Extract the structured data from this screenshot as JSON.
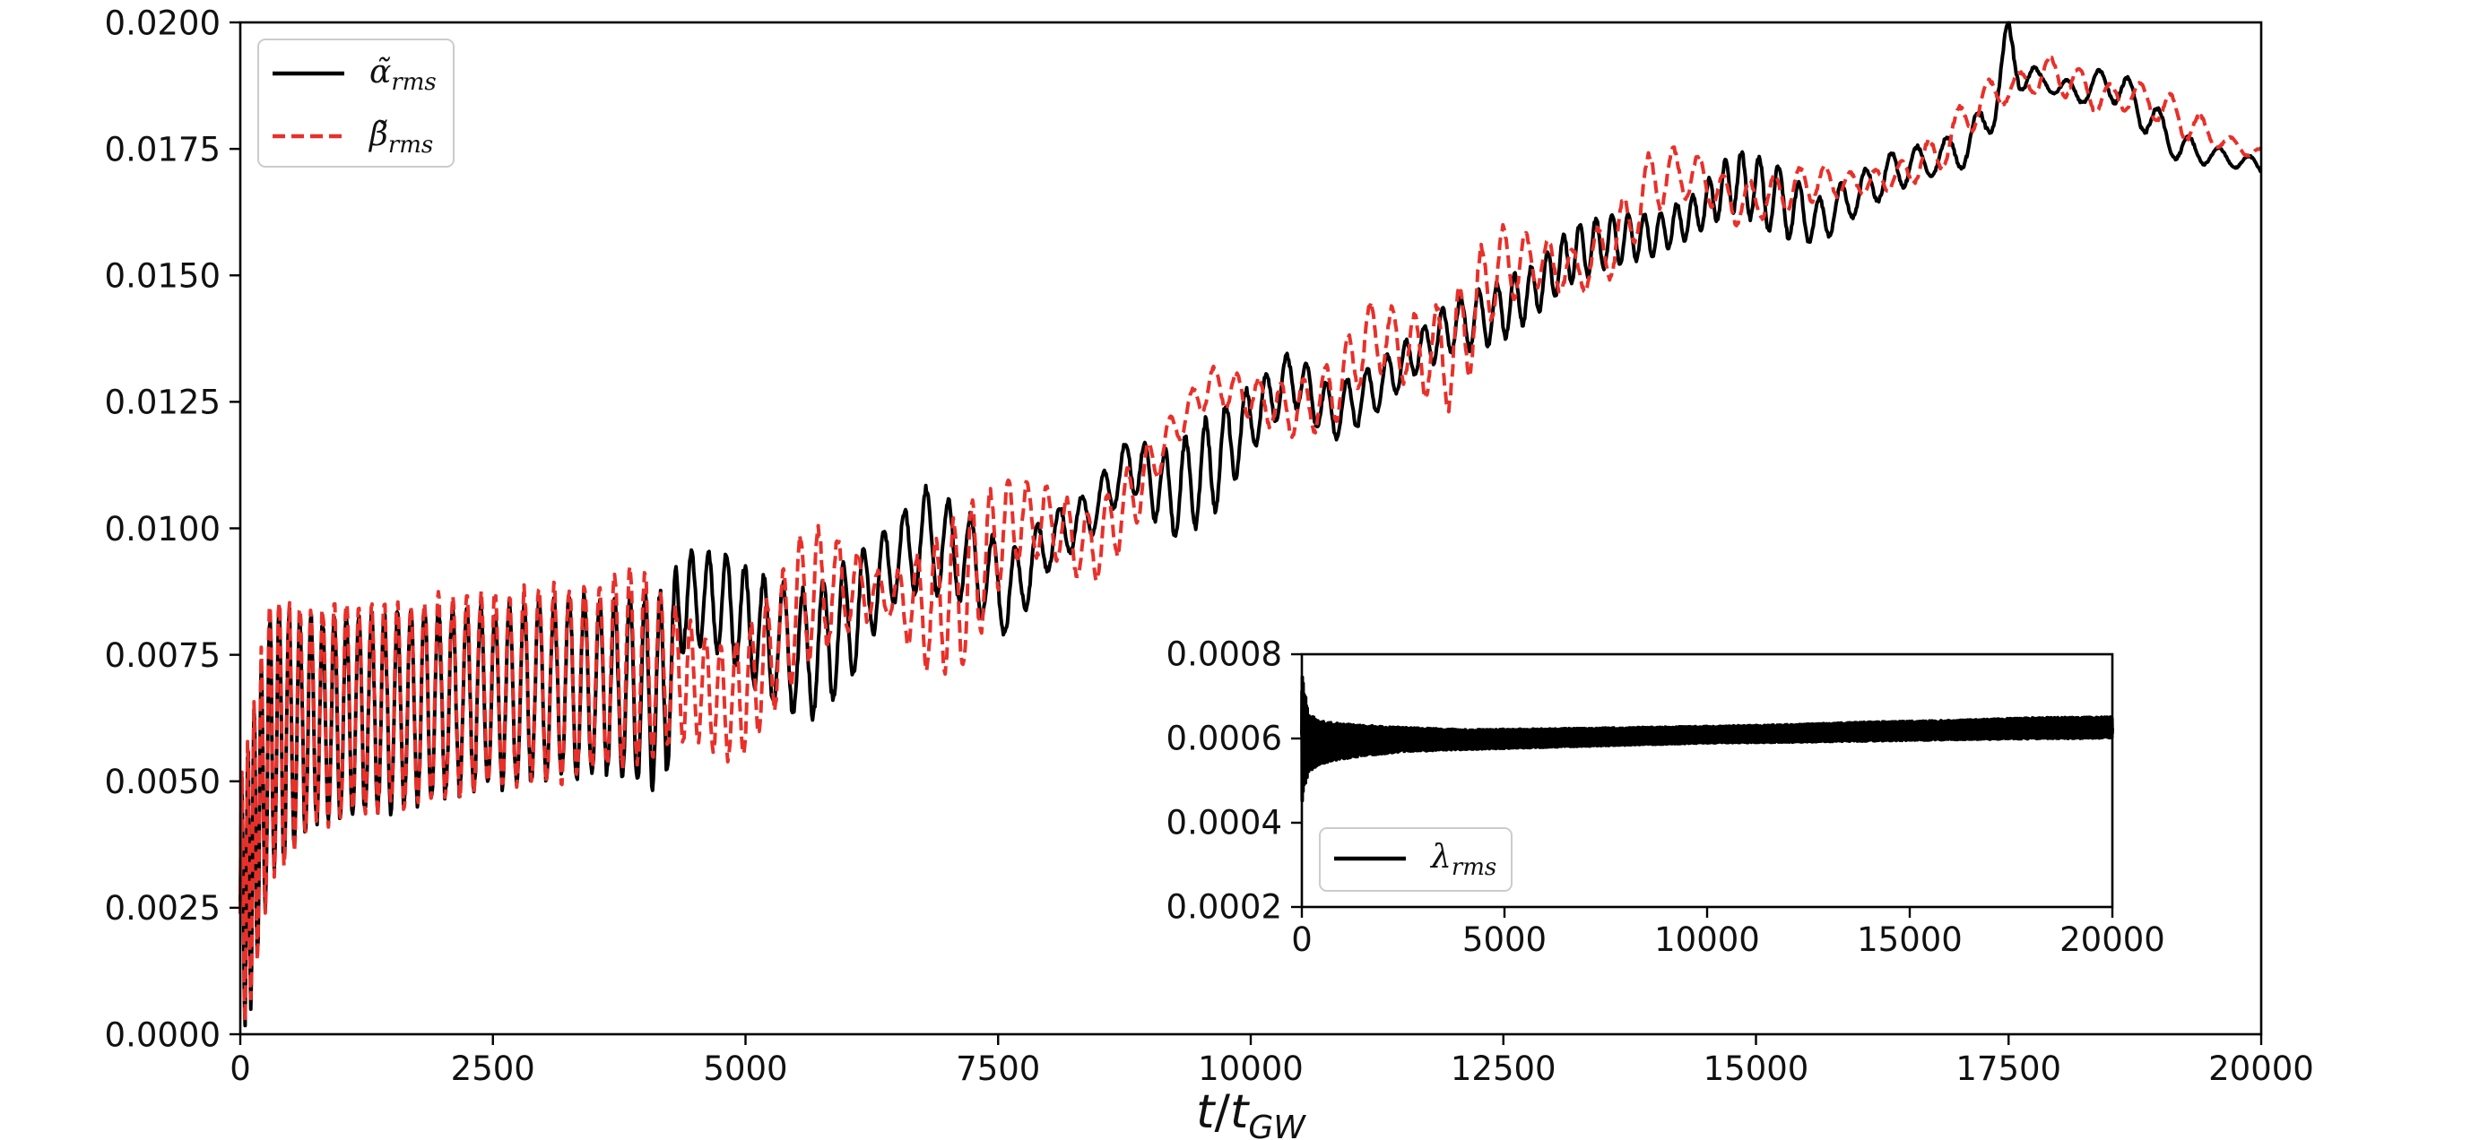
{
  "chart_data": [
    {
      "type": "line",
      "xlabel": "t/t_GW",
      "xlabel_parts": {
        "t1": "t",
        "slash": "/",
        "t2": "t",
        "sub": "GW"
      },
      "xlim": [
        0,
        20000
      ],
      "ylim": [
        0.0,
        0.02
      ],
      "xticks": [
        0,
        2500,
        5000,
        7500,
        10000,
        12500,
        15000,
        17500,
        20000
      ],
      "xtick_labels": [
        "0",
        "2500",
        "5000",
        "7500",
        "10000",
        "12500",
        "15000",
        "17500",
        "20000"
      ],
      "yticks": [
        0.0,
        0.0025,
        0.005,
        0.0075,
        0.01,
        0.0125,
        0.015,
        0.0175,
        0.02
      ],
      "ytick_labels": [
        "0.0000",
        "0.0025",
        "0.0050",
        "0.0075",
        "0.0100",
        "0.0125",
        "0.0150",
        "0.0175",
        "0.0200"
      ],
      "grid": false,
      "legend_position": "top-left",
      "series": [
        {
          "name": "α̃_rms",
          "label_base": "α̃",
          "label_sub": "rms",
          "color": "#000000",
          "style": "solid",
          "envelope": {
            "x": [
              0,
              100,
              300,
              600,
              1000,
              1500,
              2000,
              2500,
              3000,
              3500,
              4000,
              4200,
              4400,
              4800,
              5200,
              5600,
              6000,
              6400,
              6800,
              7200,
              7600,
              8000,
              8400,
              8800,
              9200,
              9600,
              10000,
              10400,
              10800,
              11200,
              11600,
              12000,
              12400,
              12800,
              13200,
              13600,
              14000,
              14400,
              14800,
              15200,
              15600,
              16000,
              16400,
              16800,
              17200,
              17500,
              17800,
              18200,
              18500,
              18800,
              19200,
              19600,
              20000
            ],
            "low": [
              0.0,
              0.0005,
              0.003,
              0.004,
              0.0043,
              0.0045,
              0.0047,
              0.0049,
              0.005,
              0.0052,
              0.005,
              0.0048,
              0.0078,
              0.0075,
              0.0066,
              0.0062,
              0.0068,
              0.0085,
              0.0088,
              0.0085,
              0.0078,
              0.0092,
              0.0098,
              0.0108,
              0.0098,
              0.0102,
              0.0115,
              0.0125,
              0.0117,
              0.0122,
              0.013,
              0.0135,
              0.0136,
              0.0142,
              0.0149,
              0.0152,
              0.0154,
              0.0158,
              0.0163,
              0.0158,
              0.0156,
              0.0162,
              0.0167,
              0.017,
              0.0172,
              0.0186,
              0.0187,
              0.0184,
              0.0185,
              0.0179,
              0.0172,
              0.0172,
              0.017
            ],
            "high": [
              0.005,
              0.006,
              0.0085,
              0.0082,
              0.0082,
              0.0083,
              0.0084,
              0.0084,
              0.0086,
              0.0086,
              0.0086,
              0.0087,
              0.0095,
              0.0095,
              0.009,
              0.0087,
              0.0093,
              0.01,
              0.0108,
              0.0103,
              0.0095,
              0.0103,
              0.0107,
              0.0118,
              0.0115,
              0.0122,
              0.0128,
              0.0135,
              0.0128,
              0.0132,
              0.0138,
              0.0145,
              0.0148,
              0.0152,
              0.016,
              0.0162,
              0.0162,
              0.0166,
              0.0175,
              0.0172,
              0.0165,
              0.017,
              0.0175,
              0.0176,
              0.0182,
              0.02,
              0.019,
              0.0188,
              0.0192,
              0.0187,
              0.0178,
              0.0175,
              0.0173
            ],
            "period": [
              60,
              60,
              90,
              110,
              120,
              130,
              140,
              140,
              150,
              150,
              150,
              150,
              160,
              180,
              190,
              200,
              200,
              200,
              220,
              220,
              220,
              220,
              220,
              200,
              200,
              200,
              200,
              200,
              200,
              200,
              180,
              180,
              180,
              160,
              160,
              160,
              160,
              160,
              160,
              200,
              200,
              250,
              250,
              300,
              300,
              300,
              300,
              300,
              300,
              300,
              300,
              300,
              300
            ]
          }
        },
        {
          "name": "β̃_rms",
          "label_base": "β̃",
          "label_sub": "rms",
          "color": "#e8302a",
          "style": "dashed",
          "envelope": {
            "x": [
              0,
              100,
              300,
              600,
              1000,
              1500,
              2000,
              2500,
              3000,
              3500,
              4000,
              4300,
              4600,
              4800,
              5000,
              5300,
              5600,
              6000,
              6400,
              6800,
              7200,
              7600,
              8000,
              8400,
              8800,
              9200,
              9600,
              10000,
              10400,
              10800,
              11200,
              11600,
              12000,
              12400,
              12800,
              13200,
              13600,
              14000,
              14400,
              14800,
              15200,
              15600,
              16000,
              16400,
              16800,
              17200,
              17600,
              18000,
              18400,
              18800,
              19200,
              19600,
              20000
            ],
            "low": [
              0.0,
              0.0005,
              0.003,
              0.004,
              0.0043,
              0.0045,
              0.0047,
              0.0049,
              0.005,
              0.0052,
              0.0054,
              0.0058,
              0.0058,
              0.0054,
              0.0056,
              0.0065,
              0.0073,
              0.008,
              0.0083,
              0.0072,
              0.0072,
              0.0093,
              0.0095,
              0.0088,
              0.0098,
              0.0115,
              0.0125,
              0.0122,
              0.0118,
              0.012,
              0.0132,
              0.0128,
              0.0123,
              0.0142,
              0.0148,
              0.0146,
              0.015,
              0.0163,
              0.0166,
              0.016,
              0.0162,
              0.0165,
              0.0166,
              0.0167,
              0.017,
              0.018,
              0.0186,
              0.0186,
              0.0182,
              0.0183,
              0.0177,
              0.0175,
              0.0173
            ],
            "high": [
              0.005,
              0.006,
              0.0088,
              0.0084,
              0.0085,
              0.0085,
              0.0086,
              0.0087,
              0.0088,
              0.0089,
              0.0092,
              0.0084,
              0.0078,
              0.0076,
              0.0079,
              0.0088,
              0.0101,
              0.0097,
              0.009,
              0.0096,
              0.0104,
              0.011,
              0.0108,
              0.0103,
              0.0112,
              0.0122,
              0.0132,
              0.013,
              0.0128,
              0.0133,
              0.0145,
              0.0142,
              0.0145,
              0.016,
              0.0158,
              0.0155,
              0.0162,
              0.0176,
              0.0174,
              0.0168,
              0.017,
              0.0172,
              0.017,
              0.0172,
              0.0178,
              0.0188,
              0.019,
              0.0194,
              0.0188,
              0.0188,
              0.0185,
              0.0178,
              0.0175
            ],
            "period": [
              60,
              60,
              90,
              110,
              120,
              130,
              140,
              140,
              150,
              150,
              150,
              150,
              150,
              150,
              150,
              160,
              180,
              200,
              200,
              180,
              180,
              180,
              200,
              200,
              200,
              220,
              220,
              220,
              220,
              220,
              220,
              220,
              220,
              220,
              220,
              250,
              250,
              250,
              250,
              250,
              250,
              250,
              250,
              250,
              300,
              300,
              300,
              300,
              300,
              300,
              300,
              300,
              300
            ]
          }
        }
      ]
    },
    {
      "type": "line",
      "inset": true,
      "xlim": [
        0,
        20000
      ],
      "ylim": [
        0.0002,
        0.0008
      ],
      "xticks": [
        0,
        5000,
        10000,
        15000,
        20000
      ],
      "xtick_labels": [
        "0",
        "5000",
        "10000",
        "15000",
        "20000"
      ],
      "yticks": [
        0.0002,
        0.0004,
        0.0006,
        0.0008
      ],
      "ytick_labels": [
        "0.0002",
        "0.0004",
        "0.0006",
        "0.0008"
      ],
      "grid": false,
      "legend_position": "bottom-left",
      "series": [
        {
          "name": "λ_rms",
          "label_base": "λ",
          "label_sub": "rms",
          "color": "#000000",
          "style": "solid",
          "envelope": {
            "x": [
              0,
              50,
              150,
              400,
              800,
              1500,
              2500,
              4000,
              6000,
              8000,
              10000,
              12000,
              14000,
              16000,
              18000,
              20000
            ],
            "low": [
              0.00045,
              0.00048,
              0.00052,
              0.00054,
              0.00055,
              0.00056,
              0.00057,
              0.000575,
              0.00058,
              0.000585,
              0.00059,
              0.000592,
              0.000595,
              0.000598,
              0.0006,
              0.000602
            ],
            "high": [
              0.00078,
              0.00072,
              0.00066,
              0.00064,
              0.000635,
              0.00063,
              0.000625,
              0.00062,
              0.000622,
              0.000625,
              0.000628,
              0.000632,
              0.000638,
              0.000642,
              0.000648,
              0.00065
            ],
            "period": [
              10,
              10,
              10,
              10,
              10,
              10,
              10,
              10,
              10,
              10,
              10,
              10,
              10,
              10,
              10,
              10
            ]
          }
        }
      ]
    }
  ]
}
